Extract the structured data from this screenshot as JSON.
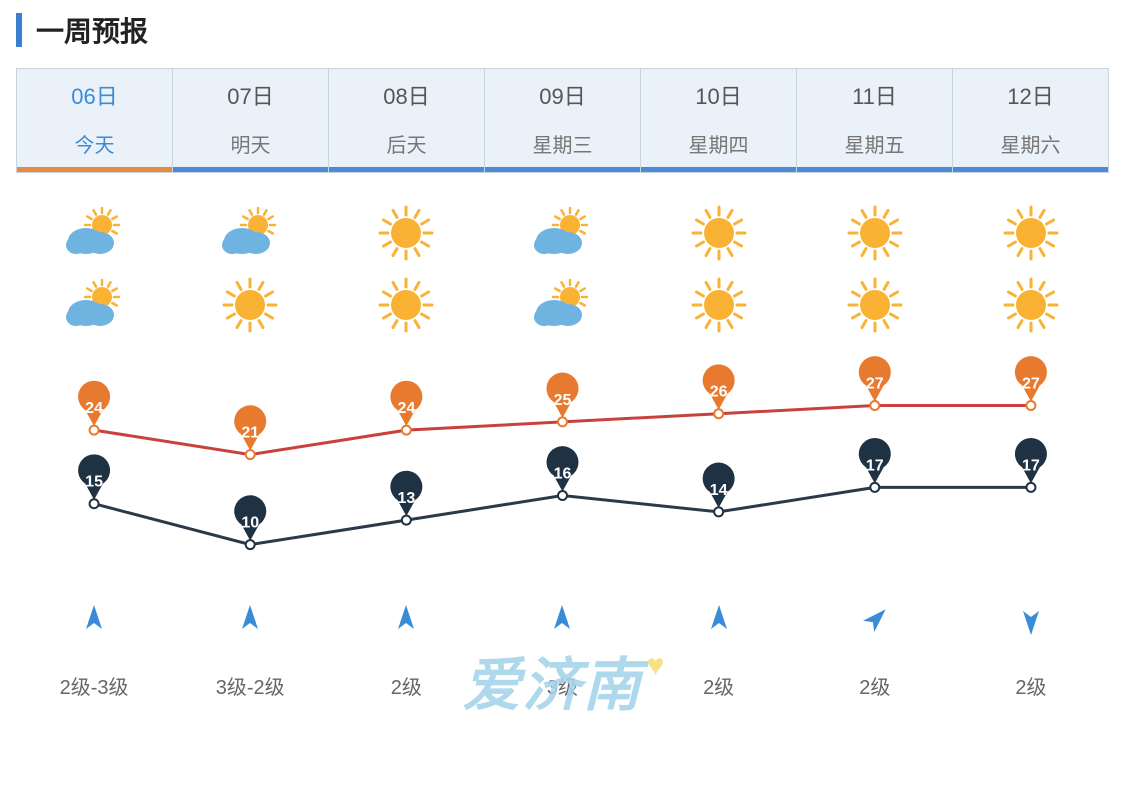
{
  "title": "一周预报",
  "accent_color": "#3a7fcf",
  "header_bg": "#eaf1f8",
  "header_border": "#c8d4e0",
  "active_index": 0,
  "active_underline_color": "#e58a3e",
  "inactive_underline_color": "#4a8bd4",
  "days": [
    {
      "date": "06日",
      "label": "今天",
      "icon_am": "partly",
      "icon_pm": "partly",
      "high": 24,
      "low": 15,
      "wind_dir": 0,
      "wind": "2级-3级"
    },
    {
      "date": "07日",
      "label": "明天",
      "icon_am": "partly",
      "icon_pm": "sunny",
      "high": 21,
      "low": 10,
      "wind_dir": 0,
      "wind": "3级-2级"
    },
    {
      "date": "08日",
      "label": "后天",
      "icon_am": "sunny",
      "icon_pm": "sunny",
      "high": 24,
      "low": 13,
      "wind_dir": 0,
      "wind": "2级"
    },
    {
      "date": "09日",
      "label": "星期三",
      "icon_am": "partly",
      "icon_pm": "partly",
      "high": 25,
      "low": 16,
      "wind_dir": 0,
      "wind": "3级"
    },
    {
      "date": "10日",
      "label": "星期四",
      "icon_am": "sunny",
      "icon_pm": "sunny",
      "high": 26,
      "low": 14,
      "wind_dir": 0,
      "wind": "2级"
    },
    {
      "date": "11日",
      "label": "星期五",
      "icon_am": "sunny",
      "icon_pm": "sunny",
      "high": 27,
      "low": 17,
      "wind_dir": 45,
      "wind": "2级"
    },
    {
      "date": "12日",
      "label": "星期六",
      "icon_am": "sunny",
      "icon_pm": "sunny",
      "high": 27,
      "low": 17,
      "wind_dir": 180,
      "wind": "2级"
    }
  ],
  "chart": {
    "high_line_color": "#c9413f",
    "high_marker_color": "#e77a2e",
    "low_line_color": "#2b3a4a",
    "low_marker_color": "#1f3244",
    "temp_min": 8,
    "temp_max": 30,
    "area_height": 230,
    "marker_radius": 16,
    "line_width": 3,
    "label_fontsize": 16,
    "label_color": "#ffffff"
  },
  "icon_colors": {
    "sun": "#f9b233",
    "cloud": "#6fb3e0",
    "wind_arrow": "#3a8bd8"
  },
  "watermark": "爱济南",
  "watermark_color": "#a6d4e9",
  "watermark_heart_color": "#f5df7b"
}
